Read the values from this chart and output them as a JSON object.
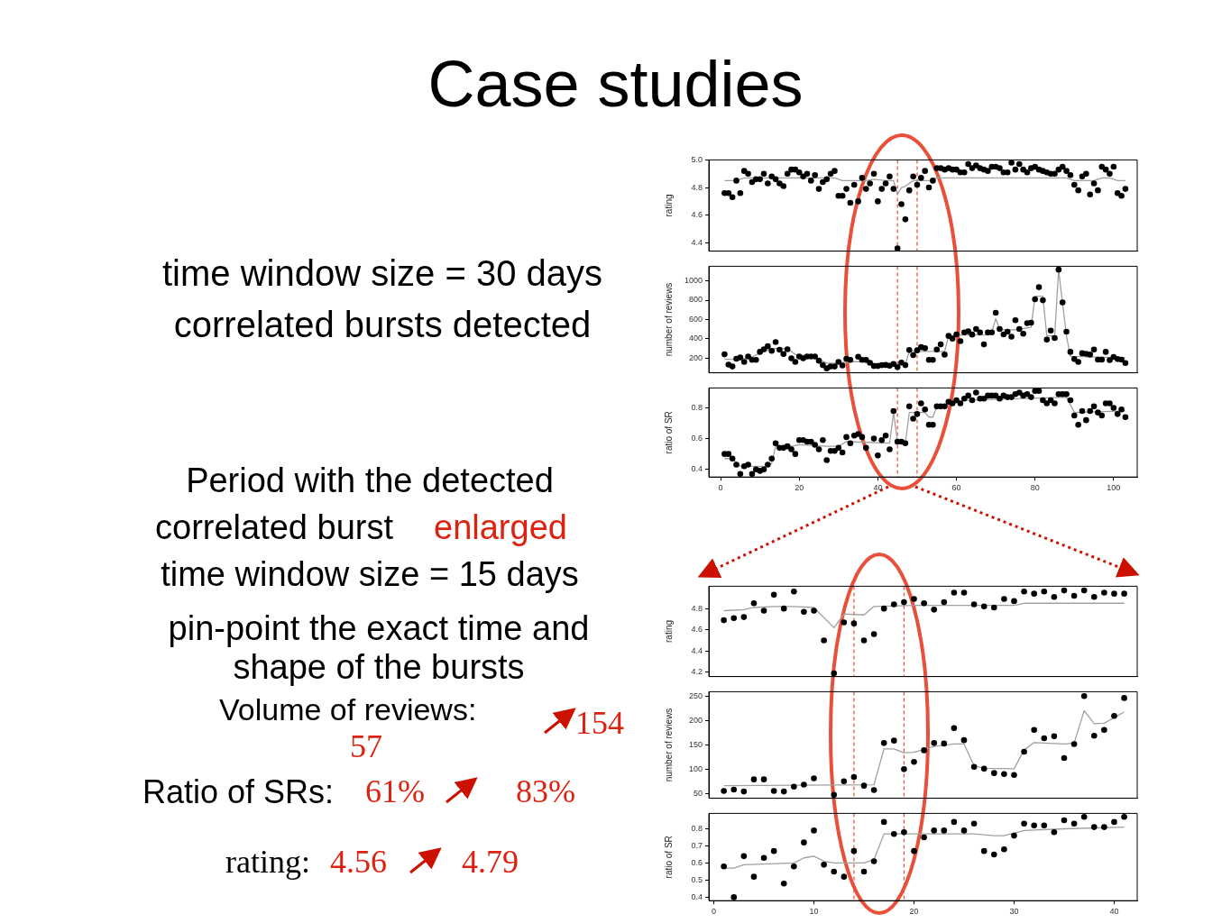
{
  "chart_data": [
    {
      "type": "other",
      "title": "Case studies",
      "annotations": [
        "time window size = 30 days",
        "correlated bursts detected",
        "Period with the detected",
        "correlated burst",
        "enlarged",
        "time window size = 15 days",
        "pin-point the exact time and shape of the bursts",
        "Volume of reviews:",
        "57",
        "154",
        "Ratio of SRs:",
        "61%",
        "83%",
        "rating:",
        "4.56",
        "4.79"
      ]
    },
    {
      "type": "scatter",
      "ylabel": "rating",
      "tick_labels": "y",
      "marker": "circle",
      "xlim": [
        -3,
        106
      ],
      "xticks": [
        0,
        20,
        40,
        60,
        80,
        100
      ],
      "ylim": [
        4.34,
        5.0
      ],
      "yticks": [
        4.4,
        4.6,
        4.8,
        {
          "value": 5,
          "label": "5.0"
        }
      ],
      "x": [
        1,
        2,
        3,
        4,
        5,
        6,
        7,
        8,
        9,
        10,
        11,
        12,
        13,
        14,
        15,
        16,
        17,
        18,
        19,
        20,
        21,
        22,
        23,
        24,
        25,
        26,
        27,
        28,
        29,
        30,
        31,
        32,
        33,
        34,
        35,
        36,
        37,
        38,
        39,
        40,
        41,
        42,
        43,
        44,
        45,
        46,
        47,
        48,
        49,
        50,
        51,
        52,
        53,
        54,
        55,
        56,
        57,
        58,
        59,
        60,
        61,
        62,
        63,
        64,
        65,
        66,
        67,
        68,
        69,
        70,
        71,
        72,
        73,
        74,
        75,
        76,
        77,
        78,
        79,
        80,
        81,
        82,
        83,
        84,
        85,
        86,
        87,
        88,
        89,
        90,
        91,
        92,
        93,
        94,
        95,
        96,
        97,
        98,
        99,
        100,
        101,
        102,
        103
      ],
      "ref_lines": [
        {
          "axis": "x",
          "value": 45,
          "color": "#e8503a",
          "line_style": "dashed"
        },
        {
          "axis": "x",
          "value": 50,
          "color": "#e8503a",
          "line_style": "dashed"
        }
      ],
      "series": [
        {
          "color": "#000000",
          "values": [
            4.76,
            4.76,
            4.73,
            4.85,
            4.76,
            4.92,
            4.9,
            4.84,
            4.86,
            4.86,
            4.9,
            4.83,
            4.88,
            4.86,
            4.83,
            4.81,
            4.9,
            4.93,
            4.93,
            4.91,
            4.88,
            4.9,
            4.85,
            4.89,
            4.79,
            4.84,
            4.86,
            4.9,
            4.92,
            4.74,
            4.74,
            4.79,
            4.69,
            4.82,
            4.7,
            4.87,
            4.79,
            4.83,
            4.9,
            4.7,
            4.79,
            4.83,
            4.88,
            4.79,
            4.36,
            4.68,
            4.57,
            4.78,
            4.88,
            4.82,
            4.87,
            4.92,
            4.8,
            4.85,
            4.94,
            4.94,
            4.93,
            4.94,
            4.93,
            4.93,
            4.91,
            4.91,
            4.97,
            4.94,
            4.96,
            4.94,
            4.93,
            4.92,
            4.95,
            4.95,
            4.94,
            4.91,
            4.91,
            4.98,
            4.93,
            4.97,
            4.93,
            4.91,
            4.94,
            4.95,
            4.93,
            4.92,
            4.91,
            4.9,
            4.9,
            4.93,
            4.95,
            4.92,
            4.89,
            4.82,
            4.78,
            4.88,
            4.9,
            4.75,
            4.83,
            4.78,
            4.95,
            4.93,
            4.9,
            4.95,
            4.76,
            4.74,
            4.79
          ]
        },
        {
          "type": "line",
          "marker": "none",
          "color": "#a0a0a0",
          "x": [
            1,
            4,
            6,
            29,
            31,
            37,
            39,
            42,
            44,
            45,
            46,
            47,
            49,
            54,
            55,
            88,
            90,
            95,
            97,
            99,
            101,
            103
          ],
          "values": [
            4.85,
            4.85,
            4.87,
            4.87,
            4.85,
            4.85,
            4.86,
            4.85,
            4.85,
            4.75,
            4.8,
            4.81,
            4.85,
            4.85,
            4.87,
            4.87,
            4.85,
            4.85,
            4.87,
            4.87,
            4.85,
            4.85
          ]
        }
      ]
    },
    {
      "type": "scatter",
      "ylabel": "number of reviews",
      "tick_labels": "y",
      "marker": "circle",
      "xlim": [
        -3,
        106
      ],
      "xticks": [
        0,
        20,
        40,
        60,
        80,
        100
      ],
      "ylim": [
        50,
        1150
      ],
      "yticks": [
        200,
        400,
        600,
        800,
        1000
      ],
      "x": [
        1,
        2,
        3,
        4,
        5,
        6,
        7,
        8,
        9,
        10,
        11,
        12,
        13,
        14,
        15,
        16,
        17,
        18,
        19,
        20,
        21,
        22,
        23,
        24,
        25,
        26,
        27,
        28,
        29,
        30,
        31,
        32,
        33,
        34,
        35,
        36,
        37,
        38,
        39,
        40,
        41,
        42,
        43,
        44,
        45,
        46,
        47,
        48,
        49,
        50,
        51,
        52,
        53,
        54,
        55,
        56,
        57,
        58,
        59,
        60,
        61,
        62,
        63,
        64,
        65,
        66,
        67,
        68,
        69,
        70,
        71,
        72,
        73,
        74,
        75,
        76,
        77,
        78,
        79,
        80,
        81,
        82,
        83,
        84,
        85,
        86,
        87,
        88,
        89,
        90,
        91,
        92,
        93,
        94,
        95,
        96,
        97,
        98,
        99,
        100,
        101,
        102,
        103
      ],
      "ref_lines": [
        {
          "axis": "x",
          "value": 45,
          "color": "#e8503a",
          "line_style": "dashed"
        },
        {
          "axis": "x",
          "value": 50,
          "color": "#e8503a",
          "line_style": "dashed"
        }
      ],
      "series": [
        {
          "color": "#000000",
          "values": [
            241,
            134,
            115,
            195,
            208,
            162,
            219,
            184,
            184,
            266,
            293,
            324,
            277,
            368,
            288,
            244,
            293,
            200,
            162,
            219,
            200,
            219,
            219,
            219,
            175,
            129,
            96,
            115,
            115,
            162,
            126,
            195,
            184,
            null,
            216,
            184,
            184,
            153,
            120,
            120,
            129,
            131,
            123,
            142,
            109,
            156,
            129,
            285,
            233,
            282,
            315,
            304,
            184,
            184,
            291,
            343,
            238,
            431,
            403,
            447,
            376,
            467,
            478,
            445,
            502,
            467,
            343,
            467,
            467,
            670,
            502,
            447,
            475,
            423,
            593,
            502,
            453,
            563,
            568,
            810,
            934,
            799,
            392,
            486,
            409,
            1115,
            777,
            475,
            266,
            192,
            162,
            252,
            247,
            238,
            291,
            186,
            186,
            266,
            181,
            214,
            192,
            186,
            151
          ]
        },
        {
          "type": "line",
          "marker": "none",
          "color": "#a0a0a0",
          "x": [
            1,
            4,
            7,
            10,
            13,
            17,
            19,
            23,
            25,
            27,
            30,
            32,
            36,
            38,
            45,
            47,
            48,
            57,
            58,
            61,
            68,
            69,
            70,
            71,
            73,
            76,
            79,
            80,
            82,
            83,
            85,
            86,
            88,
            89,
            103
          ],
          "values": [
            190,
            190,
            200,
            250,
            300,
            300,
            240,
            220,
            190,
            150,
            150,
            165,
            165,
            145,
            145,
            140,
            270,
            270,
            430,
            440,
            440,
            470,
            610,
            500,
            490,
            500,
            520,
            840,
            840,
            430,
            430,
            1110,
            430,
            220,
            205
          ]
        }
      ]
    },
    {
      "type": "scatter",
      "ylabel": "ratio of SR",
      "marker": "circle",
      "xlim": [
        -3,
        106
      ],
      "xticks": [
        0,
        20,
        40,
        60,
        80,
        100
      ],
      "ylim": [
        0.35,
        0.93
      ],
      "yticks": [
        0.4,
        0.6,
        0.8
      ],
      "x": [
        1,
        2,
        3,
        4,
        5,
        6,
        7,
        8,
        9,
        10,
        11,
        12,
        13,
        14,
        15,
        16,
        17,
        18,
        19,
        20,
        21,
        22,
        23,
        24,
        25,
        26,
        27,
        28,
        29,
        30,
        31,
        32,
        33,
        34,
        35,
        36,
        37,
        38,
        39,
        40,
        41,
        42,
        43,
        44,
        45,
        46,
        47,
        48,
        49,
        50,
        51,
        52,
        53,
        54,
        55,
        56,
        57,
        58,
        59,
        60,
        61,
        62,
        63,
        64,
        65,
        66,
        67,
        68,
        69,
        70,
        71,
        72,
        73,
        74,
        75,
        76,
        77,
        78,
        79,
        80,
        81,
        82,
        83,
        84,
        85,
        86,
        87,
        88,
        89,
        90,
        91,
        92,
        93,
        94,
        95,
        96,
        97,
        98,
        99,
        100,
        101,
        102,
        103
      ],
      "ref_lines": [
        {
          "axis": "x",
          "value": 45,
          "color": "#e8503a",
          "line_style": "dashed"
        },
        {
          "axis": "x",
          "value": 50,
          "color": "#e8503a",
          "line_style": "dashed"
        }
      ],
      "series": [
        {
          "color": "#000000",
          "values": [
            0.5,
            0.5,
            0.47,
            0.43,
            0.37,
            0.42,
            0.43,
            0.37,
            0.4,
            0.39,
            0.4,
            0.43,
            0.47,
            0.57,
            0.54,
            0.54,
            0.55,
            0.53,
            0.5,
            0.59,
            0.59,
            0.58,
            0.58,
            0.56,
            0.53,
            0.59,
            0.46,
            0.52,
            0.52,
            0.54,
            0.51,
            0.61,
            0.57,
            0.62,
            0.63,
            0.61,
            0.54,
            null,
            0.6,
            0.49,
            0.59,
            0.62,
            0.53,
            0.78,
            0.58,
            0.58,
            0.57,
            0.81,
            0.73,
            0.76,
            0.83,
            0.79,
            0.69,
            0.69,
            0.81,
            0.81,
            0.81,
            0.84,
            0.83,
            0.85,
            0.83,
            0.86,
            0.88,
            0.85,
            0.9,
            0.86,
            0.86,
            0.88,
            0.88,
            0.88,
            0.86,
            0.88,
            0.87,
            0.87,
            0.89,
            0.9,
            0.88,
            0.89,
            0.87,
            0.91,
            0.91,
            0.85,
            0.83,
            0.85,
            0.83,
            0.89,
            0.89,
            0.89,
            0.85,
            0.75,
            0.69,
            0.78,
            0.72,
            0.78,
            0.81,
            0.77,
            0.75,
            0.83,
            0.83,
            0.8,
            0.76,
            0.79,
            0.74
          ]
        },
        {
          "type": "line",
          "marker": "none",
          "color": "#a0a0a0",
          "x": [
            1,
            3,
            5,
            12,
            13,
            14,
            18,
            20,
            27,
            30,
            32,
            43,
            44,
            45,
            47,
            48,
            52,
            53,
            54,
            55,
            58,
            62,
            88,
            90,
            103
          ],
          "values": [
            0.47,
            0.47,
            0.42,
            0.42,
            0.44,
            0.55,
            0.55,
            0.56,
            0.55,
            0.55,
            0.58,
            0.57,
            0.77,
            0.58,
            0.57,
            0.77,
            0.77,
            0.74,
            0.74,
            0.81,
            0.82,
            0.85,
            0.87,
            0.77,
            0.78
          ]
        }
      ]
    },
    {
      "type": "scatter",
      "ylabel": "rating",
      "tick_labels": "y",
      "marker": "circle",
      "xlim": [
        -0.5,
        42.3
      ],
      "xticks": [
        0,
        10,
        20,
        30,
        40
      ],
      "ylim": [
        4.16,
        5.01
      ],
      "yticks": [
        4.2,
        4.4,
        4.6,
        4.8
      ],
      "x": [
        1,
        2,
        3,
        4,
        5,
        6,
        7,
        8,
        9,
        10,
        11,
        12,
        13,
        14,
        15,
        16,
        17,
        18,
        19,
        20,
        21,
        22,
        23,
        24,
        25,
        26,
        27,
        28,
        29,
        30,
        31,
        32,
        33,
        34,
        35,
        36,
        37,
        38,
        39,
        40,
        41
      ],
      "ref_lines": [
        {
          "axis": "x",
          "value": 14,
          "color": "#e8503a",
          "line_style": "dashed"
        },
        {
          "axis": "x",
          "value": 19,
          "color": "#e8503a",
          "line_style": "dashed"
        }
      ],
      "series": [
        {
          "color": "#000000",
          "values": [
            4.69,
            4.71,
            4.72,
            4.85,
            4.78,
            4.93,
            4.8,
            4.96,
            4.77,
            4.78,
            4.5,
            4.19,
            4.67,
            4.66,
            4.5,
            4.56,
            4.8,
            4.84,
            4.86,
            4.89,
            4.85,
            4.79,
            4.86,
            4.95,
            4.95,
            4.84,
            4.82,
            4.81,
            4.89,
            4.87,
            4.96,
            4.94,
            4.96,
            4.91,
            4.97,
            4.92,
            4.97,
            4.91,
            4.95,
            4.94,
            4.94
          ]
        },
        {
          "type": "line",
          "marker": "none",
          "color": "#a0a0a0",
          "x": [
            1,
            3,
            4,
            6,
            8,
            10,
            12,
            13,
            15,
            16,
            20,
            30,
            31,
            41
          ],
          "values": [
            4.78,
            4.79,
            4.81,
            4.82,
            4.82,
            4.81,
            4.62,
            4.75,
            4.74,
            4.82,
            4.83,
            4.83,
            4.85,
            4.85
          ]
        }
      ]
    },
    {
      "type": "scatter",
      "ylabel": "number of reviews",
      "tick_labels": "y",
      "marker": "circle",
      "xlim": [
        -0.5,
        42.3
      ],
      "xticks": [
        0,
        10,
        20,
        30,
        40
      ],
      "ylim": [
        40,
        260
      ],
      "yticks": [
        50,
        100,
        150,
        200,
        250
      ],
      "x": [
        1,
        2,
        3,
        4,
        5,
        6,
        7,
        8,
        9,
        10,
        11,
        12,
        13,
        14,
        15,
        16,
        17,
        18,
        19,
        20,
        21,
        22,
        23,
        24,
        25,
        26,
        27,
        28,
        29,
        30,
        31,
        32,
        33,
        34,
        35,
        36,
        37,
        38,
        39,
        40,
        41
      ],
      "ref_lines": [
        {
          "axis": "x",
          "value": 14,
          "color": "#e8503a",
          "line_style": "dashed"
        },
        {
          "axis": "x",
          "value": 19,
          "color": "#e8503a",
          "line_style": "dashed"
        }
      ],
      "series": [
        {
          "color": "#000000",
          "values": [
            55,
            58,
            54,
            79,
            79,
            55,
            54,
            64,
            68,
            81,
            null,
            47,
            75,
            84,
            66,
            57,
            154,
            159,
            100,
            115,
            139,
            154,
            153,
            185,
            160,
            105,
            101,
            92,
            90,
            88,
            136,
            181,
            164,
            168,
            123,
            152,
            251,
            169,
            181,
            210,
            247
          ]
        },
        {
          "type": "line",
          "marker": "none",
          "color": "#a0a0a0",
          "x": [
            1,
            16,
            17,
            18,
            19,
            20,
            22,
            24,
            25,
            26,
            27,
            30,
            31,
            32,
            35,
            36,
            37,
            38,
            39,
            41
          ],
          "values": [
            66,
            68,
            142,
            142,
            134,
            135,
            147,
            152,
            152,
            107,
            102,
            101,
            140,
            155,
            152,
            154,
            221,
            194,
            195,
            218
          ]
        }
      ]
    },
    {
      "type": "scatter",
      "ylabel": "ratio of SR",
      "marker": "circle",
      "xlim": [
        -0.5,
        42.3
      ],
      "xticks": [
        0,
        10,
        20,
        30,
        40
      ],
      "ylim": [
        0.38,
        0.89
      ],
      "yticks": [
        0.4,
        0.5,
        0.6,
        0.7,
        0.8
      ],
      "x": [
        1,
        2,
        3,
        4,
        5,
        6,
        7,
        8,
        9,
        10,
        11,
        12,
        13,
        14,
        15,
        16,
        17,
        18,
        19,
        20,
        21,
        22,
        23,
        24,
        25,
        26,
        27,
        28,
        29,
        30,
        31,
        32,
        33,
        34,
        35,
        36,
        37,
        38,
        39,
        40,
        41
      ],
      "ref_lines": [
        {
          "axis": "x",
          "value": 14,
          "color": "#e8503a",
          "line_style": "dashed"
        },
        {
          "axis": "x",
          "value": 19,
          "color": "#e8503a",
          "line_style": "dashed"
        }
      ],
      "series": [
        {
          "color": "#000000",
          "values": [
            0.58,
            0.4,
            0.64,
            0.52,
            0.63,
            0.67,
            0.48,
            0.58,
            0.72,
            0.79,
            0.59,
            0.55,
            0.52,
            0.67,
            0.55,
            0.61,
            0.84,
            0.77,
            0.78,
            0.67,
            0.75,
            0.79,
            0.79,
            0.84,
            0.79,
            0.83,
            0.67,
            0.65,
            0.68,
            0.76,
            0.83,
            0.82,
            0.82,
            0.78,
            0.85,
            0.83,
            0.87,
            0.81,
            0.81,
            0.84,
            0.87
          ]
        },
        {
          "type": "line",
          "marker": "none",
          "color": "#a0a0a0",
          "x": [
            1,
            2,
            3,
            8,
            9,
            10,
            11,
            12,
            15,
            16,
            17,
            20,
            26,
            28,
            29,
            31,
            35,
            41
          ],
          "values": [
            0.57,
            0.57,
            0.59,
            0.6,
            0.63,
            0.64,
            0.61,
            0.6,
            0.6,
            0.62,
            0.77,
            0.77,
            0.77,
            0.76,
            0.76,
            0.79,
            0.8,
            0.81
          ]
        }
      ]
    }
  ]
}
